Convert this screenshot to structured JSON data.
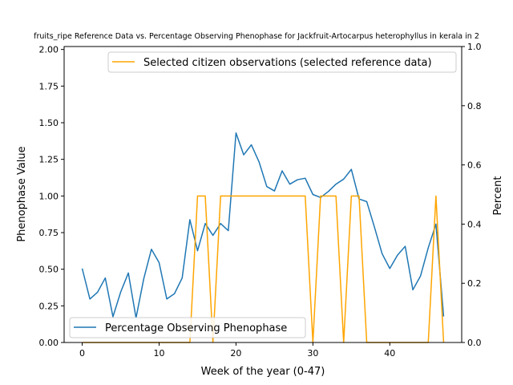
{
  "chart_data": {
    "type": "line",
    "title": "fruits_ripe Reference Data vs. Percentage Observing Phenophase for Jackfruit-Artocarpus heterophyllus in kerala in 2",
    "xlabel": "Week of the year (0-47)",
    "ylabel_left": "Phenophase Value",
    "ylabel_right": "Percent",
    "xlim": [
      -2.35,
      49.35
    ],
    "ylim_left": [
      0,
      2.02
    ],
    "ylim_right": [
      0,
      1.0
    ],
    "x_ticks": [
      0,
      10,
      20,
      30,
      40
    ],
    "y_ticks_left": [
      "0.00",
      "0.25",
      "0.50",
      "0.75",
      "1.00",
      "1.25",
      "1.50",
      "1.75",
      "2.00"
    ],
    "y_ticks_right": [
      "0.0",
      "0.2",
      "0.4",
      "0.6",
      "0.8",
      "1.0"
    ],
    "grid": false,
    "series": [
      {
        "name": "Percentage Observing Phenophase",
        "axis": "right",
        "color": "#1f77b4",
        "legend_position": "lower-left",
        "x": [
          0,
          1,
          2,
          3,
          4,
          5,
          6,
          7,
          8,
          9,
          10,
          11,
          12,
          13,
          14,
          15,
          16,
          17,
          18,
          19,
          20,
          21,
          22,
          23,
          24,
          25,
          26,
          27,
          28,
          29,
          30,
          31,
          32,
          33,
          34,
          35,
          36,
          37,
          38,
          39,
          40,
          41,
          42,
          43,
          44,
          45,
          46,
          47
        ],
        "y": [
          0.25,
          0.147,
          0.17,
          0.218,
          0.087,
          0.17,
          0.235,
          0.083,
          0.215,
          0.315,
          0.27,
          0.147,
          0.165,
          0.218,
          0.415,
          0.31,
          0.402,
          0.362,
          0.402,
          0.378,
          0.708,
          0.634,
          0.668,
          0.61,
          0.527,
          0.512,
          0.58,
          0.535,
          0.55,
          0.555,
          0.5,
          0.49,
          0.51,
          0.535,
          0.552,
          0.585,
          0.485,
          0.476,
          0.39,
          0.3,
          0.25,
          0.295,
          0.325,
          0.178,
          0.225,
          0.32,
          0.4,
          0.088
        ]
      },
      {
        "name": "Selected citizen observations (selected reference data)",
        "axis": "left",
        "color": "#ffa500",
        "legend_position": "upper-right",
        "x": [
          0,
          1,
          2,
          3,
          4,
          5,
          6,
          7,
          8,
          9,
          10,
          11,
          12,
          13,
          14,
          15,
          16,
          17,
          18,
          19,
          20,
          21,
          22,
          23,
          24,
          25,
          26,
          27,
          28,
          29,
          30,
          31,
          32,
          33,
          34,
          35,
          36,
          37,
          38,
          39,
          40,
          41,
          42,
          43,
          44,
          45,
          46,
          47
        ],
        "y": [
          0,
          0,
          0,
          0,
          0,
          0,
          0,
          0,
          0,
          0,
          0,
          0,
          0,
          0,
          0,
          1,
          1,
          0,
          1,
          1,
          1,
          1,
          1,
          1,
          1,
          1,
          1,
          1,
          1,
          1,
          0,
          1,
          1,
          1,
          0,
          1,
          1,
          0,
          0,
          0,
          0,
          0,
          0,
          0,
          0,
          0,
          1,
          0
        ]
      }
    ]
  }
}
